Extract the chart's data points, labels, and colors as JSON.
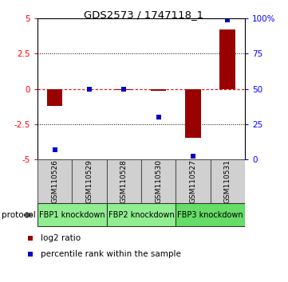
{
  "title": "GDS2573 / 1747118_1",
  "samples": [
    "GSM110526",
    "GSM110529",
    "GSM110528",
    "GSM110530",
    "GSM110527",
    "GSM110531"
  ],
  "log2_ratio": [
    -1.2,
    0.0,
    -0.1,
    -0.15,
    -3.5,
    4.2
  ],
  "percentile_rank": [
    7,
    50,
    50,
    30,
    2,
    99
  ],
  "ylim_left": [
    -5,
    5
  ],
  "ylim_right": [
    0,
    100
  ],
  "yticks_left": [
    -5,
    -2.5,
    0,
    2.5,
    5
  ],
  "yticks_right": [
    0,
    25,
    50,
    75,
    100
  ],
  "ytick_labels_left": [
    "-5",
    "-2.5",
    "0",
    "2.5",
    "5"
  ],
  "ytick_labels_right": [
    "0",
    "25",
    "50",
    "75",
    "100%"
  ],
  "hlines_dotted": [
    2.5,
    -2.5
  ],
  "hline_dashed_red": 0,
  "bar_color": "#990000",
  "scatter_color": "#0000cc",
  "protocol_groups": [
    {
      "label": "FBP1 knockdown",
      "samples": [
        0,
        1
      ],
      "color": "#90ee90"
    },
    {
      "label": "FBP2 knockdown",
      "samples": [
        2,
        3
      ],
      "color": "#90ee90"
    },
    {
      "label": "FBP3 knockdown",
      "samples": [
        4,
        5
      ],
      "color": "#66dd66"
    }
  ],
  "legend_red_label": "log2 ratio",
  "legend_blue_label": "percentile rank within the sample",
  "protocol_label": "protocol",
  "bar_width": 0.45,
  "bg_color": "#ffffff",
  "sample_box_color": "#d0d0d0"
}
